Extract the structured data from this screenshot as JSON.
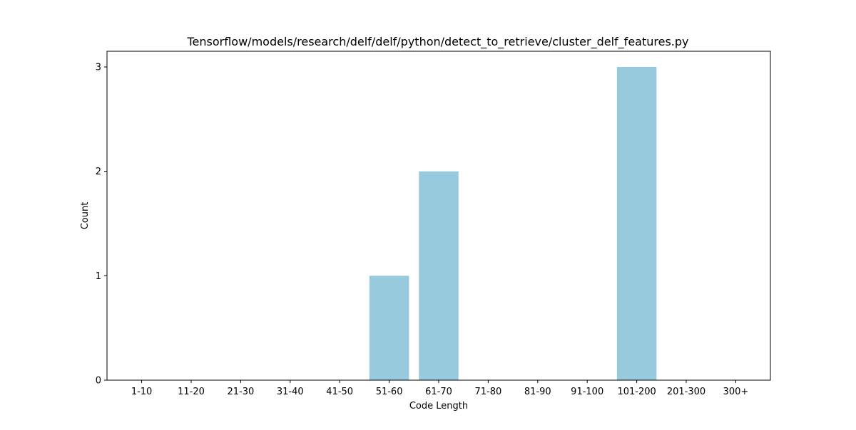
{
  "chart_data": {
    "type": "bar",
    "title": "Tensorflow/models/research/delf/delf/python/detect_to_retrieve/cluster_delf_features.py",
    "xlabel": "Code Length",
    "ylabel": "Count",
    "categories": [
      "1-10",
      "11-20",
      "21-30",
      "31-40",
      "41-50",
      "51-60",
      "61-70",
      "71-80",
      "81-90",
      "91-100",
      "101-200",
      "201-300",
      "300+"
    ],
    "values": [
      0,
      0,
      0,
      0,
      0,
      1,
      2,
      0,
      0,
      0,
      3,
      0,
      0
    ],
    "ylim": [
      0,
      3.15
    ],
    "yticks": [
      0,
      1,
      2,
      3
    ],
    "grid": false,
    "bar_color": "#96cadc"
  }
}
